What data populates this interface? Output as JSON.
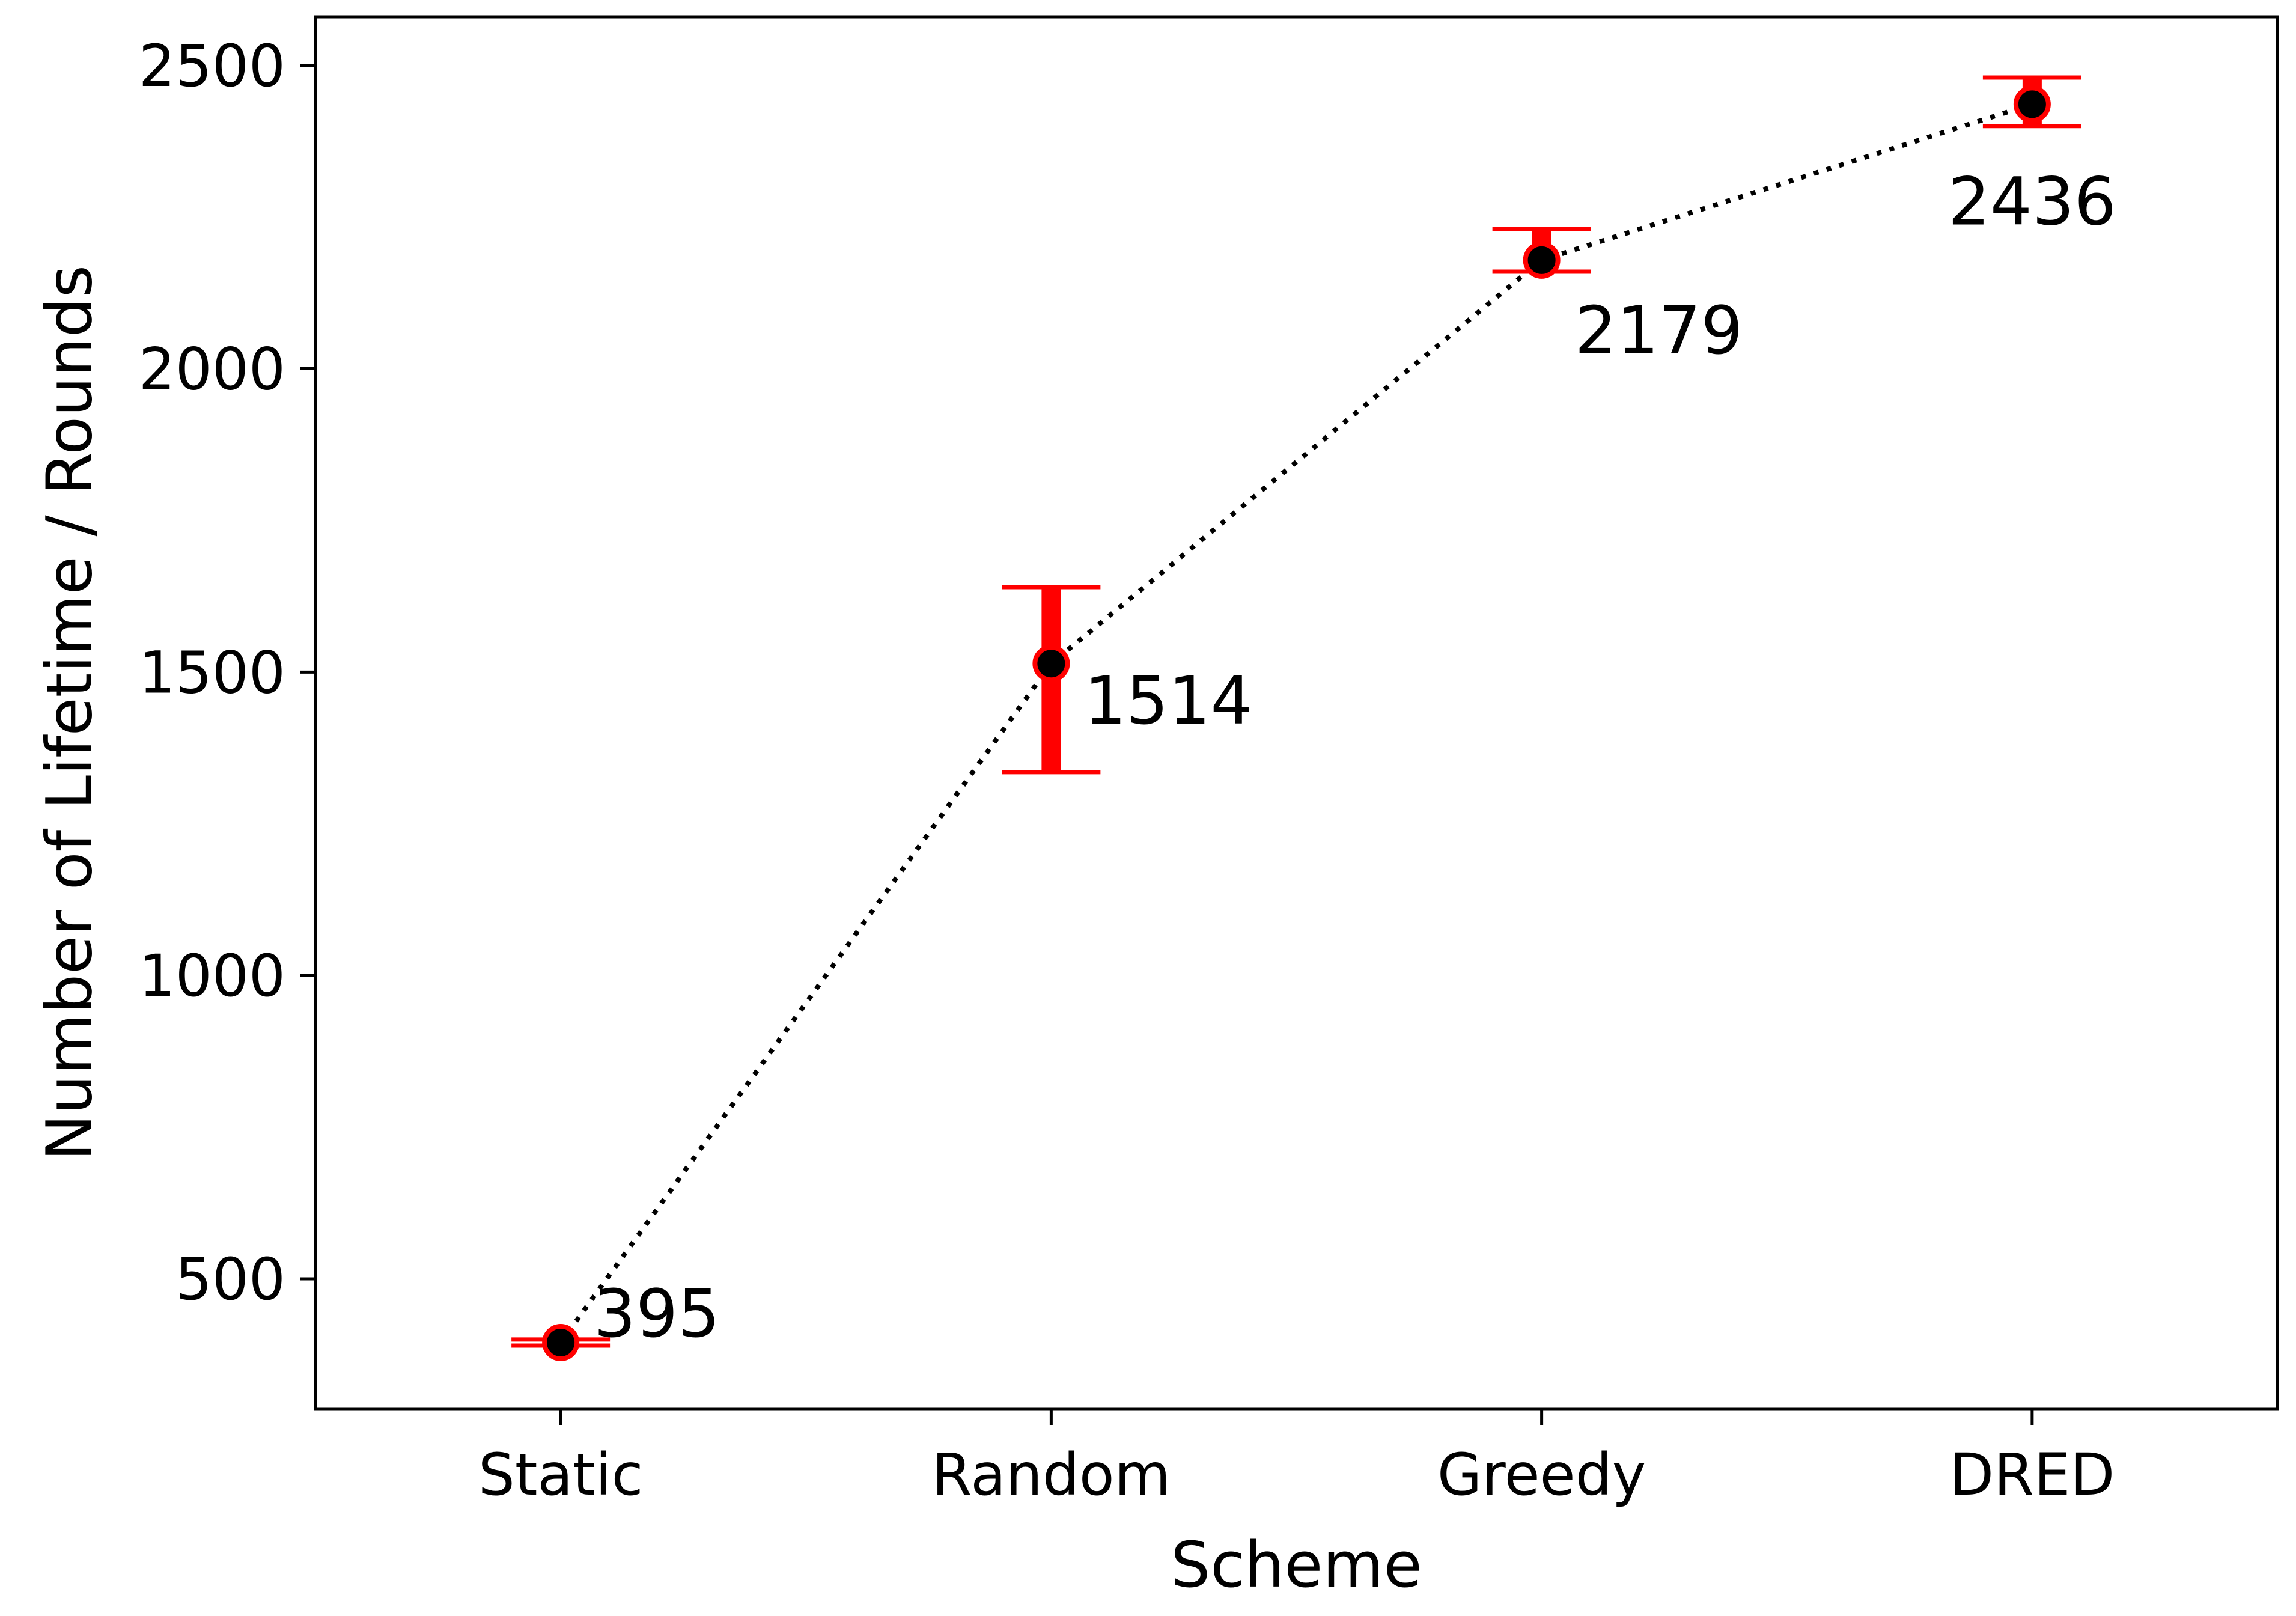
{
  "chart_data": {
    "type": "line",
    "xlabel": "Scheme",
    "ylabel": "Number of Lifetime / Rounds",
    "categories": [
      "Static",
      "Random",
      "Greedy",
      "DRED"
    ],
    "values": [
      395,
      1514,
      2179,
      2436
    ],
    "error_low": [
      390,
      1335,
      2160,
      2400
    ],
    "error_high": [
      400,
      1640,
      2230,
      2480
    ],
    "data_labels": [
      "395",
      "1514",
      "2179",
      "2436"
    ],
    "ylim": [
      285,
      2580
    ],
    "yticks": [
      500,
      1000,
      1500,
      2000,
      2500
    ],
    "ytick_labels": [
      "500",
      "1000",
      "1500",
      "2000",
      "2500"
    ],
    "line_style": "dotted",
    "grid": false,
    "legend": "none",
    "colors": {
      "marker": "#000000",
      "marker_edge": "#ff0000",
      "errorbar": "#ff0000",
      "line": "#000000"
    }
  }
}
